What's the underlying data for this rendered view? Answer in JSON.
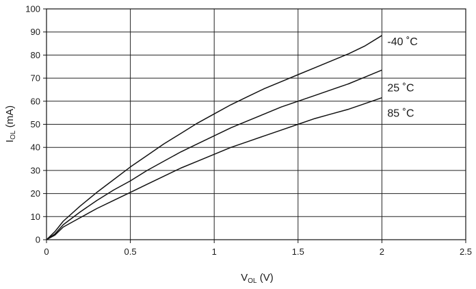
{
  "chart_data": {
    "type": "line",
    "title": "",
    "xlabel": {
      "main": "V",
      "sub": "OL",
      "unit": " (V)"
    },
    "ylabel": {
      "main": "I",
      "sub": "OL",
      "unit": " (mA)"
    },
    "xlim": [
      0,
      2.5
    ],
    "ylim": [
      0,
      100
    ],
    "x_ticks": [
      "0",
      "0.5",
      "1",
      "1.5",
      "2",
      "2.5"
    ],
    "y_ticks": [
      "0",
      "10",
      "20",
      "30",
      "40",
      "50",
      "60",
      "70",
      "80",
      "90",
      "100"
    ],
    "grid": true,
    "x": [
      0,
      0.05,
      0.1,
      0.2,
      0.3,
      0.4,
      0.5,
      0.6,
      0.7,
      0.8,
      0.9,
      1.0,
      1.1,
      1.2,
      1.3,
      1.4,
      1.5,
      1.6,
      1.7,
      1.8,
      1.9,
      2.0
    ],
    "series": [
      {
        "name": "-40 ˚C",
        "color": "#111111",
        "values": [
          0,
          3.5,
          8,
          14.5,
          20.5,
          26,
          31.5,
          36.5,
          41.5,
          46,
          50.5,
          54.5,
          58.5,
          62,
          65.5,
          68.5,
          71.5,
          74.5,
          77.5,
          80.5,
          84,
          88.5
        ]
      },
      {
        "name": "25 ˚C",
        "color": "#111111",
        "values": [
          0,
          2.5,
          6.5,
          12,
          17,
          21.5,
          25.5,
          30,
          34,
          38,
          41.5,
          45,
          48.5,
          51.5,
          54.5,
          57.5,
          60,
          62.5,
          65,
          67.5,
          70.5,
          73.5
        ]
      },
      {
        "name": "85 ˚C",
        "color": "#111111",
        "values": [
          0,
          2,
          5.5,
          9.5,
          13.5,
          17,
          20.5,
          24,
          27.5,
          31,
          34,
          37,
          40,
          42.5,
          45,
          47.5,
          50,
          52.5,
          54.5,
          56.5,
          59,
          61.5
        ]
      }
    ]
  }
}
